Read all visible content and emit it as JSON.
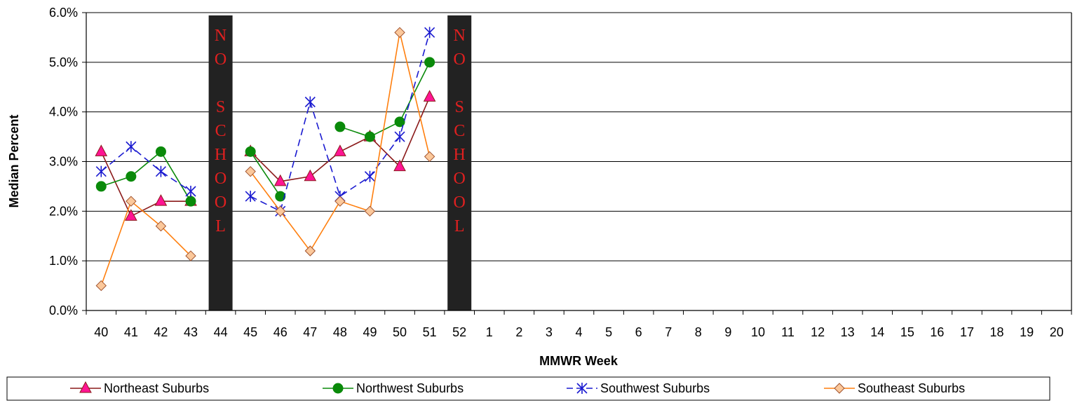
{
  "chart_data": {
    "type": "line",
    "xlabel": "MMWR Week",
    "ylabel": "Median Percent",
    "categories": [
      "40",
      "41",
      "42",
      "43",
      "44",
      "45",
      "46",
      "47",
      "48",
      "49",
      "50",
      "51",
      "52",
      "1",
      "2",
      "3",
      "4",
      "5",
      "6",
      "7",
      "8",
      "9",
      "10",
      "11",
      "12",
      "13",
      "14",
      "15",
      "16",
      "17",
      "18",
      "19",
      "20"
    ],
    "ylim": [
      0,
      6.0
    ],
    "yticks": [
      "0.0%",
      "1.0%",
      "2.0%",
      "3.0%",
      "4.0%",
      "5.0%",
      "6.0%"
    ],
    "grid": "horizontal",
    "legend": "bottom",
    "no_school_weeks": [
      "44",
      "52"
    ],
    "no_school_label": "NO SCHOOL",
    "series": [
      {
        "name": "Northeast Suburbs",
        "color": "#8b1a1a",
        "marker": "triangle",
        "marker_fill": "#ff1493",
        "values": [
          3.2,
          1.9,
          2.2,
          2.2,
          null,
          3.2,
          2.6,
          2.7,
          3.2,
          3.5,
          2.9,
          4.3,
          null,
          null,
          null,
          null,
          null,
          null,
          null,
          null,
          null,
          null,
          null,
          null,
          null,
          null,
          null,
          null,
          null,
          null,
          null,
          null,
          null
        ]
      },
      {
        "name": "Northwest Suburbs",
        "color": "#0a8a0a",
        "marker": "circle",
        "marker_fill": "#0a8a0a",
        "values": [
          2.5,
          2.7,
          3.2,
          2.2,
          null,
          3.2,
          2.3,
          null,
          3.7,
          3.5,
          3.8,
          5.0,
          null,
          null,
          null,
          null,
          null,
          null,
          null,
          null,
          null,
          null,
          null,
          null,
          null,
          null,
          null,
          null,
          null,
          null,
          null,
          null,
          null
        ]
      },
      {
        "name": "Southwest Suburbs",
        "color": "#1a1ad0",
        "marker": "star",
        "marker_fill": "none",
        "dash": "10,6",
        "values": [
          2.8,
          3.3,
          2.8,
          2.4,
          null,
          2.3,
          2.0,
          4.2,
          2.3,
          2.7,
          3.5,
          5.6,
          null,
          null,
          null,
          null,
          null,
          null,
          null,
          null,
          null,
          null,
          null,
          null,
          null,
          null,
          null,
          null,
          null,
          null,
          null,
          null,
          null
        ]
      },
      {
        "name": "Southeast Suburbs",
        "color": "#ff7f0e",
        "marker": "diamond",
        "marker_fill": "#fbc89b",
        "values": [
          0.5,
          2.2,
          1.7,
          1.1,
          null,
          2.8,
          2.0,
          1.2,
          2.2,
          2.0,
          5.6,
          3.1,
          null,
          null,
          null,
          null,
          null,
          null,
          null,
          null,
          null,
          null,
          null,
          null,
          null,
          null,
          null,
          null,
          null,
          null,
          null,
          null,
          null
        ]
      }
    ]
  }
}
